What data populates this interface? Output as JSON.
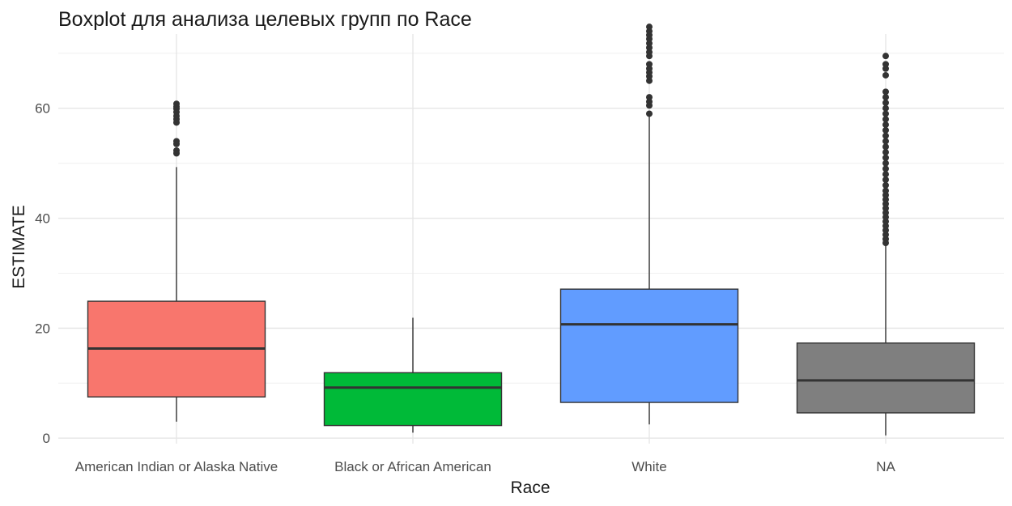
{
  "chart_data": {
    "type": "boxplot",
    "title": "Boxplot для анализа целевых групп по Race",
    "xlabel": "Race",
    "ylabel": "ESTIMATE",
    "ylim": [
      -1,
      73.5
    ],
    "yticks": [
      0,
      20,
      40,
      60
    ],
    "grid": true,
    "legend": "none",
    "categories": [
      "American Indian or Alaska Native",
      "Black or African American",
      "White",
      "NA"
    ],
    "boxes": [
      {
        "category": "American Indian or Alaska Native",
        "color": "#F8766D",
        "whisker_low": 3.0,
        "q1": 7.5,
        "median": 16.3,
        "q3": 24.9,
        "whisker_high": 49.3,
        "outliers": [
          51.8,
          52.3,
          53.5,
          54.0,
          57.4,
          58.0,
          58.6,
          59.3,
          59.9,
          60.3,
          60.8
        ]
      },
      {
        "category": "Black or African American",
        "color": "#00BA38",
        "whisker_low": 1.0,
        "q1": 2.3,
        "median": 9.2,
        "q3": 11.9,
        "whisker_high": 21.9,
        "outliers": []
      },
      {
        "category": "White",
        "color": "#619CFF",
        "whisker_low": 2.5,
        "q1": 6.5,
        "median": 20.7,
        "q3": 27.1,
        "whisker_high": 58.5,
        "outliers": [
          59.0,
          60.5,
          61.2,
          62.0,
          65.0,
          65.8,
          66.5,
          67.2,
          68.0,
          69.5,
          70.2,
          71.0,
          71.8,
          72.6,
          73.3,
          74.0,
          74.8
        ]
      },
      {
        "category": "NA",
        "color": "#7F7F7F",
        "whisker_low": 0.5,
        "q1": 4.6,
        "median": 10.5,
        "q3": 17.3,
        "whisker_high": 35.0,
        "outliers": [
          35.5,
          36.2,
          37.0,
          37.8,
          38.6,
          39.4,
          40.2,
          41.0,
          41.8,
          42.6,
          43.4,
          44.2,
          45.0,
          46.0,
          47.0,
          48.0,
          49.0,
          50.0,
          51.0,
          52.0,
          53.0,
          54.0,
          55.0,
          56.0,
          57.0,
          58.0,
          59.0,
          60.0,
          61.0,
          62.0,
          63.0,
          66.0,
          67.2,
          68.0,
          69.5
        ]
      }
    ]
  }
}
